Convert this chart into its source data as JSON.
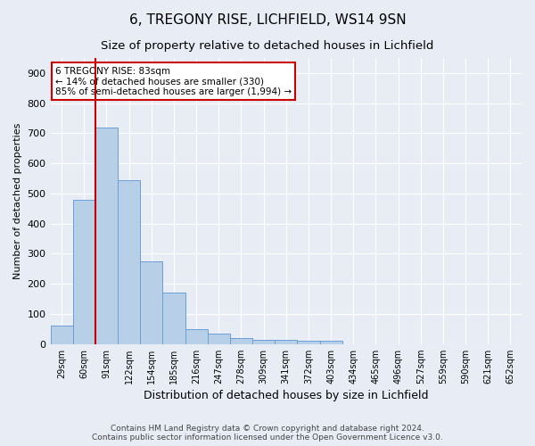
{
  "title1": "6, TREGONY RISE, LICHFIELD, WS14 9SN",
  "title2": "Size of property relative to detached houses in Lichfield",
  "xlabel": "Distribution of detached houses by size in Lichfield",
  "ylabel": "Number of detached properties",
  "categories": [
    "29sqm",
    "60sqm",
    "91sqm",
    "122sqm",
    "154sqm",
    "185sqm",
    "216sqm",
    "247sqm",
    "278sqm",
    "309sqm",
    "341sqm",
    "372sqm",
    "403sqm",
    "434sqm",
    "465sqm",
    "496sqm",
    "527sqm",
    "559sqm",
    "590sqm",
    "621sqm",
    "652sqm"
  ],
  "values": [
    60,
    480,
    720,
    545,
    275,
    170,
    50,
    35,
    20,
    15,
    15,
    10,
    10,
    0,
    0,
    0,
    0,
    0,
    0,
    0,
    0
  ],
  "bar_color": "#b8cfe8",
  "bar_edge_color": "#6a9fd8",
  "background_color": "#e8edf5",
  "grid_color": "#ffffff",
  "annotation_text": "6 TREGONY RISE: 83sqm\n← 14% of detached houses are smaller (330)\n85% of semi-detached houses are larger (1,994) →",
  "annotation_box_color": "#ffffff",
  "annotation_box_edge_color": "#cc0000",
  "ylim": [
    0,
    950
  ],
  "yticks": [
    0,
    100,
    200,
    300,
    400,
    500,
    600,
    700,
    800,
    900
  ],
  "footer": "Contains HM Land Registry data © Crown copyright and database right 2024.\nContains public sector information licensed under the Open Government Licence v3.0.",
  "title1_fontsize": 11,
  "title2_fontsize": 9.5,
  "xlabel_fontsize": 9,
  "ylabel_fontsize": 8,
  "footer_fontsize": 6.5,
  "red_line_index": 2
}
